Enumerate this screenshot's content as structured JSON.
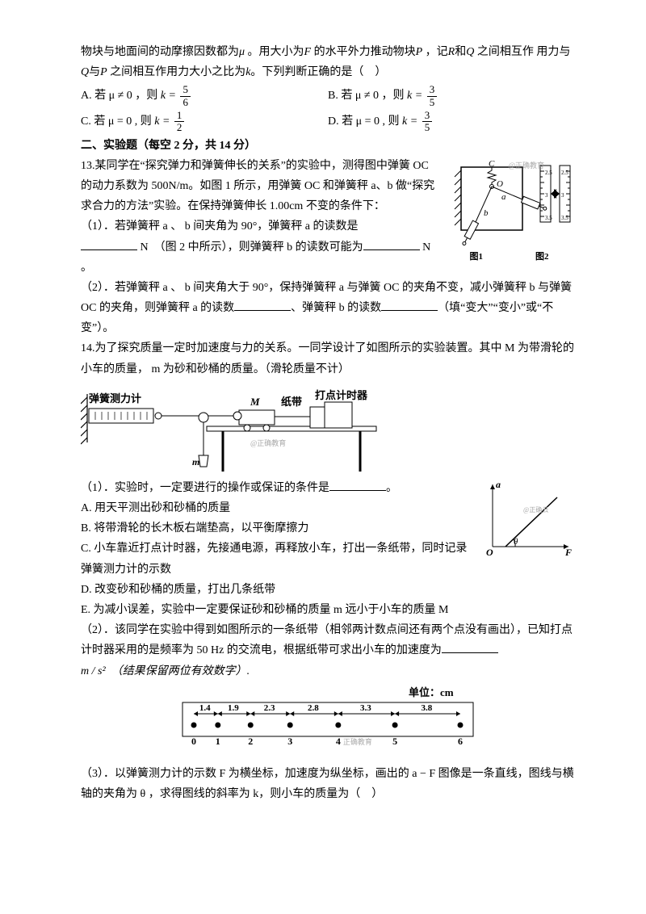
{
  "intro": {
    "line1": "物块与地面间的动摩擦因数都为",
    "mu": "μ",
    "line1b": "。用大小为",
    "F": "F",
    "line1c": "的水平外力推动物块",
    "P": "P",
    "line1d": "，记",
    "R": "R",
    "and": "和",
    "Q": "Q",
    "line1e": "之间相互作",
    "line2a": "用力与",
    "line2b": "与",
    "line2c": "之间相互作用力大小之比为",
    "k": "k",
    "line2d": "。下列判断正确的是（　）"
  },
  "opts": {
    "a": "A. 若 μ ≠ 0 ，则 ",
    "b": "B. 若 μ ≠ 0 ，则 ",
    "c": "C. 若 μ = 0 , 则 ",
    "d": "D. 若 μ = 0 , 则 ",
    "k_eq": "k =",
    "a_num": "5",
    "a_den": "6",
    "b_num": "3",
    "b_den": "5",
    "c_num": "1",
    "c_den": "2",
    "d_num": "3",
    "d_den": "5"
  },
  "section2": "二、实验题（每空 2 分，共 14 分）",
  "q13": {
    "head": "13.",
    "p1a": "某同学在“探究弹力和弹簧伸长的关系”的实验中，测得图中弹簧 OC 的动力系数为 500N/m。如图 1 所示，用弹簧 OC 和弹簧秤 a、b 做“探究求合力的方法”实验。在保持弹簧伸长 1.00cm 不变的条件下：",
    "sub1": "（1）．若弹簧秤 a 、 b 间夹角为 90°，弹簧秤 a 的读数是",
    "sub1b": " N　（图 2 中所示），则弹簧秤 b 的读数可能为",
    "sub1c": " N 。",
    "sub2": "（2）．若弹簧秤 a 、 b 间夹角大于 90°，保持弹簧秤 a 与弹簧 OC 的夹角不变，减小弹簧秤 b 与弹簧 OC 的夹角，则弹簧秤 a 的读数",
    "sub2b": "、弹簧秤 b 的读数",
    "sub2c": "（填“变大”“变小”或“不变”）。",
    "cap1": "图1",
    "cap2": "图2",
    "wm": "@正确教育",
    "fig1": {
      "C": "C",
      "O": "O",
      "a": "a",
      "b": "b",
      "scale_top": "2",
      "scale_mid": "3",
      "scale_25": "2.5",
      "scale_35": "3.5"
    }
  },
  "q14": {
    "head": "14.",
    "p1": "为了探究质量一定时加速度与力的关系。一同学设计了如图所示的实验装置。其中 M 为带滑轮的小车的质量， m 为砂和砂桶的质量。（滑轮质量不计）",
    "fig_labels": {
      "spring": "弹簧测力计",
      "M": "M",
      "tape": "纸带",
      "timer": "打点计时器",
      "m": "m",
      "wm": "@正确教育"
    },
    "sub1": "（1）．实验时，一定要进行的操作或保证的条件是",
    "sub1end": "。",
    "A": "A. 用天平测出砂和砂桶的质量",
    "B": "B. 将带滑轮的长木板右端垫高，以平衡摩擦力",
    "C": "C. 小车靠近打点计时器，先接通电源，再释放小车，打出一条纸带，同时记录弹簧测力计的示数",
    "D": "D. 改变砂和砂桶的质量，打出几条纸带",
    "E": "E. 为减小误差，实验中一定要保证砂和砂桶的质量 m 远小于小车的质量 M",
    "sub2": "（2）．该同学在实验中得到如图所示的一条纸带（相邻两计数点间还有两个点没有画出），已知打点计时器采用的是频率为 50 Hz 的交流电，根据纸带可求出小车的加速度为",
    "sub2unit": "m / s²　（结果保留两位有效数字）.",
    "tape": {
      "unit": "单位：cm",
      "v": [
        "1.4",
        "1.9",
        "2.3",
        "2.8",
        "3.3",
        "3.8"
      ],
      "idx": [
        "0",
        "1",
        "2",
        "3",
        "4",
        "5",
        "6"
      ],
      "wm": "正确教育"
    },
    "sub3": "（3）．以弹簧测力计的示数 F 为横坐标，加速度为纵坐标，画出的 a − F 图像是一条直线，图线与横轴的夹角为 θ ，求得图线的斜率为 k，则小车的质量为（　）",
    "graph": {
      "a": "a",
      "F": "F",
      "theta": "θ",
      "O": "O",
      "wm": "@正确云"
    }
  }
}
